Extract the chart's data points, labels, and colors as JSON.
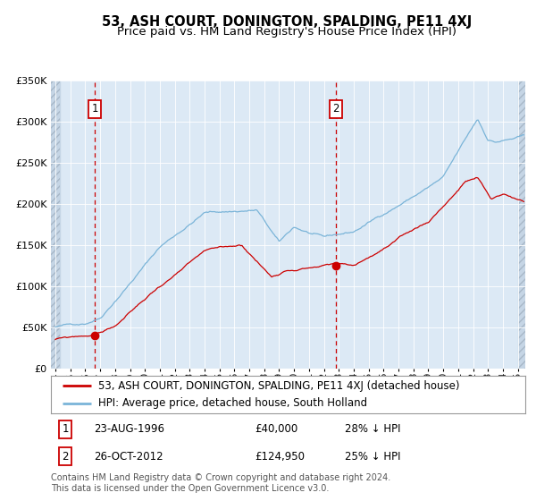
{
  "title": "53, ASH COURT, DONINGTON, SPALDING, PE11 4XJ",
  "subtitle": "Price paid vs. HM Land Registry's House Price Index (HPI)",
  "ylim": [
    0,
    350000
  ],
  "yticks": [
    0,
    50000,
    100000,
    150000,
    200000,
    250000,
    300000,
    350000
  ],
  "ytick_labels": [
    "£0",
    "£50K",
    "£100K",
    "£150K",
    "£200K",
    "£250K",
    "£300K",
    "£350K"
  ],
  "hpi_color": "#7ab4d8",
  "property_color": "#cc0000",
  "plot_bg": "#dce9f5",
  "hatch_bg": "#c5d5e5",
  "annotation1": {
    "label": "1",
    "date_label": "23-AUG-1996",
    "price": "£40,000",
    "pct": "28% ↓ HPI",
    "x_year": 1996.64,
    "y_val": 40000
  },
  "annotation2": {
    "label": "2",
    "date_label": "26-OCT-2012",
    "price": "£124,950",
    "pct": "25% ↓ HPI",
    "x_year": 2012.82,
    "y_val": 124950
  },
  "legend_property": "53, ASH COURT, DONINGTON, SPALDING, PE11 4XJ (detached house)",
  "legend_hpi": "HPI: Average price, detached house, South Holland",
  "footer": "Contains HM Land Registry data © Crown copyright and database right 2024.\nThis data is licensed under the Open Government Licence v3.0.",
  "title_fontsize": 10.5,
  "subtitle_fontsize": 9.5,
  "tick_fontsize": 8,
  "legend_fontsize": 8.5,
  "footer_fontsize": 7,
  "xmin": 1993.7,
  "xmax": 2025.5,
  "hatch_left_end": 1994.3,
  "hatch_right_start": 2025.0
}
